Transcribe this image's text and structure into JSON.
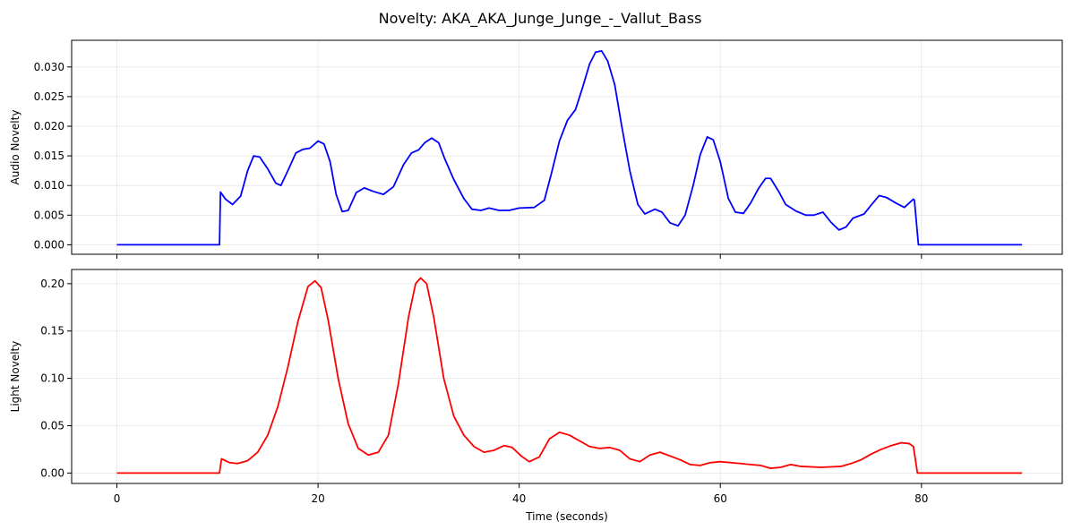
{
  "figure": {
    "title": "Novelty: AKA_AKA_Junge_Junge_-_Vallut_Bass"
  },
  "chart_data": [
    {
      "type": "line",
      "title": "",
      "xlabel": "",
      "ylabel": "Audio Novelty",
      "xlim": [
        -4.5,
        94
      ],
      "ylim": [
        -0.0016,
        0.0345
      ],
      "grid": true,
      "x_ticks": [
        0,
        20,
        40,
        60,
        80
      ],
      "x_tick_labels_shown": false,
      "y_ticks": [
        0.0,
        0.005,
        0.01,
        0.015,
        0.02,
        0.025,
        0.03
      ],
      "y_tick_labels": [
        "0.000",
        "0.005",
        "0.010",
        "0.015",
        "0.020",
        "0.025",
        "0.030"
      ],
      "series": [
        {
          "color": "#0000ff",
          "points": [
            [
              0,
              0
            ],
            [
              10.2,
              0
            ],
            [
              10.3,
              0.0089
            ],
            [
              10.8,
              0.0077
            ],
            [
              11.5,
              0.0068
            ],
            [
              12.3,
              0.0082
            ],
            [
              13,
              0.0125
            ],
            [
              13.6,
              0.015
            ],
            [
              14.2,
              0.0148
            ],
            [
              15,
              0.0128
            ],
            [
              15.8,
              0.0104
            ],
            [
              16.3,
              0.01
            ],
            [
              17,
              0.0125
            ],
            [
              17.8,
              0.0155
            ],
            [
              18.5,
              0.0161
            ],
            [
              19.2,
              0.0163
            ],
            [
              20,
              0.0175
            ],
            [
              20.6,
              0.017
            ],
            [
              21.2,
              0.014
            ],
            [
              21.8,
              0.0085
            ],
            [
              22.4,
              0.0056
            ],
            [
              23,
              0.0058
            ],
            [
              23.8,
              0.0088
            ],
            [
              24.6,
              0.0096
            ],
            [
              25.5,
              0.009
            ],
            [
              26.5,
              0.0085
            ],
            [
              27.5,
              0.0098
            ],
            [
              28.5,
              0.0135
            ],
            [
              29.3,
              0.0155
            ],
            [
              30,
              0.016
            ],
            [
              30.6,
              0.0172
            ],
            [
              31.3,
              0.018
            ],
            [
              32,
              0.0172
            ],
            [
              32.6,
              0.0145
            ],
            [
              33.5,
              0.011
            ],
            [
              34.5,
              0.0078
            ],
            [
              35.3,
              0.006
            ],
            [
              36.2,
              0.0058
            ],
            [
              37,
              0.0062
            ],
            [
              38,
              0.0058
            ],
            [
              39,
              0.0058
            ],
            [
              40,
              0.0062
            ],
            [
              41.5,
              0.0063
            ],
            [
              42.5,
              0.0075
            ],
            [
              43.2,
              0.012
            ],
            [
              44,
              0.0175
            ],
            [
              44.8,
              0.021
            ],
            [
              45.6,
              0.0228
            ],
            [
              46.3,
              0.0265
            ],
            [
              47,
              0.0305
            ],
            [
              47.6,
              0.0325
            ],
            [
              48.2,
              0.0327
            ],
            [
              48.8,
              0.031
            ],
            [
              49.5,
              0.027
            ],
            [
              50.2,
              0.02
            ],
            [
              51,
              0.0125
            ],
            [
              51.8,
              0.0068
            ],
            [
              52.5,
              0.0052
            ],
            [
              53.5,
              0.006
            ],
            [
              54.2,
              0.0055
            ],
            [
              55,
              0.0037
            ],
            [
              55.8,
              0.0032
            ],
            [
              56.5,
              0.005
            ],
            [
              57.3,
              0.01
            ],
            [
              58,
              0.0152
            ],
            [
              58.7,
              0.0182
            ],
            [
              59.3,
              0.0177
            ],
            [
              60,
              0.014
            ],
            [
              60.8,
              0.0078
            ],
            [
              61.5,
              0.0055
            ],
            [
              62.3,
              0.0053
            ],
            [
              63,
              0.007
            ],
            [
              63.8,
              0.0095
            ],
            [
              64.5,
              0.0112
            ],
            [
              65,
              0.0112
            ],
            [
              65.8,
              0.009
            ],
            [
              66.5,
              0.0068
            ],
            [
              67.5,
              0.0057
            ],
            [
              68.5,
              0.005
            ],
            [
              69.3,
              0.005
            ],
            [
              70.2,
              0.0055
            ],
            [
              71,
              0.0038
            ],
            [
              71.8,
              0.0025
            ],
            [
              72.5,
              0.003
            ],
            [
              73.2,
              0.0045
            ],
            [
              74.3,
              0.0052
            ],
            [
              75,
              0.0067
            ],
            [
              75.8,
              0.0083
            ],
            [
              76.5,
              0.008
            ],
            [
              77.5,
              0.007
            ],
            [
              78.3,
              0.0063
            ],
            [
              79.2,
              0.0077
            ],
            [
              79.3,
              0.0075
            ],
            [
              79.7,
              0
            ],
            [
              90,
              0
            ]
          ]
        }
      ]
    },
    {
      "type": "line",
      "title": "",
      "xlabel": "Time (seconds)",
      "ylabel": "Light Novelty",
      "xlim": [
        -4.5,
        94
      ],
      "ylim": [
        -0.011,
        0.215
      ],
      "grid": true,
      "x_ticks": [
        0,
        20,
        40,
        60,
        80
      ],
      "x_tick_labels": [
        "0",
        "20",
        "40",
        "60",
        "80"
      ],
      "y_ticks": [
        0.0,
        0.05,
        0.1,
        0.15,
        0.2
      ],
      "y_tick_labels": [
        "0.00",
        "0.05",
        "0.10",
        "0.15",
        "0.20"
      ],
      "series": [
        {
          "color": "#ff0000",
          "points": [
            [
              0,
              0
            ],
            [
              10.2,
              0
            ],
            [
              10.4,
              0.015
            ],
            [
              11.2,
              0.011
            ],
            [
              12,
              0.01
            ],
            [
              13,
              0.013
            ],
            [
              14,
              0.022
            ],
            [
              15,
              0.04
            ],
            [
              16,
              0.07
            ],
            [
              17,
              0.112
            ],
            [
              18,
              0.16
            ],
            [
              19,
              0.197
            ],
            [
              19.7,
              0.203
            ],
            [
              20.3,
              0.196
            ],
            [
              21,
              0.162
            ],
            [
              22,
              0.1
            ],
            [
              23,
              0.052
            ],
            [
              24,
              0.026
            ],
            [
              25,
              0.019
            ],
            [
              26,
              0.022
            ],
            [
              27,
              0.04
            ],
            [
              28,
              0.095
            ],
            [
              29,
              0.165
            ],
            [
              29.7,
              0.2
            ],
            [
              30.2,
              0.206
            ],
            [
              30.8,
              0.2
            ],
            [
              31.5,
              0.165
            ],
            [
              32.5,
              0.1
            ],
            [
              33.5,
              0.06
            ],
            [
              34.5,
              0.04
            ],
            [
              35.5,
              0.028
            ],
            [
              36.5,
              0.022
            ],
            [
              37.5,
              0.024
            ],
            [
              38.5,
              0.029
            ],
            [
              39.3,
              0.027
            ],
            [
              40.2,
              0.018
            ],
            [
              41,
              0.012
            ],
            [
              42,
              0.017
            ],
            [
              43,
              0.036
            ],
            [
              44,
              0.043
            ],
            [
              45,
              0.04
            ],
            [
              46,
              0.034
            ],
            [
              47,
              0.028
            ],
            [
              48,
              0.026
            ],
            [
              49,
              0.027
            ],
            [
              50,
              0.024
            ],
            [
              51,
              0.015
            ],
            [
              52,
              0.012
            ],
            [
              53,
              0.019
            ],
            [
              54,
              0.022
            ],
            [
              55,
              0.018
            ],
            [
              56,
              0.014
            ],
            [
              57,
              0.009
            ],
            [
              58,
              0.008
            ],
            [
              59,
              0.011
            ],
            [
              60,
              0.012
            ],
            [
              61,
              0.011
            ],
            [
              62,
              0.01
            ],
            [
              63,
              0.009
            ],
            [
              64,
              0.008
            ],
            [
              65,
              0.005
            ],
            [
              66,
              0.006
            ],
            [
              67,
              0.009
            ],
            [
              68,
              0.007
            ],
            [
              70,
              0.006
            ],
            [
              72,
              0.007
            ],
            [
              73,
              0.01
            ],
            [
              74,
              0.014
            ],
            [
              75,
              0.02
            ],
            [
              76,
              0.025
            ],
            [
              77,
              0.029
            ],
            [
              78,
              0.032
            ],
            [
              78.8,
              0.031
            ],
            [
              79.2,
              0.028
            ],
            [
              79.6,
              0
            ],
            [
              90,
              0
            ]
          ]
        }
      ]
    }
  ]
}
